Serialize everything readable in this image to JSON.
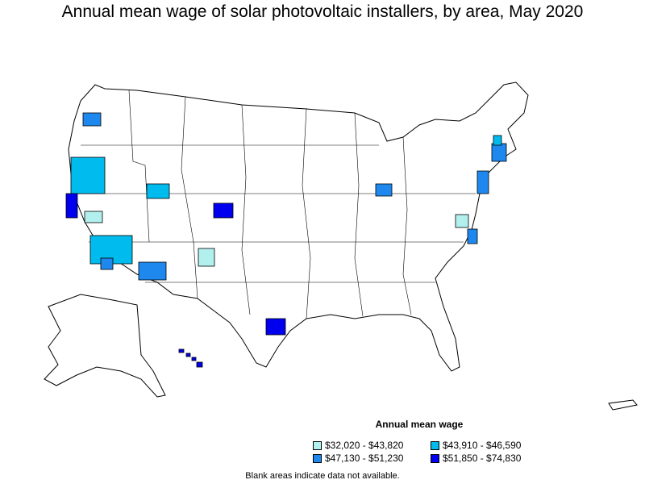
{
  "title": "Annual mean wage of solar photovoltaic installers, by area, May 2020",
  "legend": {
    "title": "Annual mean wage",
    "items": [
      {
        "label": "$32,020 - $43,820",
        "color": "#b2f0ee"
      },
      {
        "label": "$43,910 - $46,590",
        "color": "#00bbee"
      },
      {
        "label": "$47,130 - $51,230",
        "color": "#1e88ee"
      },
      {
        "label": "$51,850 - $74,830",
        "color": "#0000ee"
      }
    ]
  },
  "note": "Blank areas indicate data not available.",
  "colors": {
    "outline": "#000000",
    "background": "#ffffff"
  }
}
